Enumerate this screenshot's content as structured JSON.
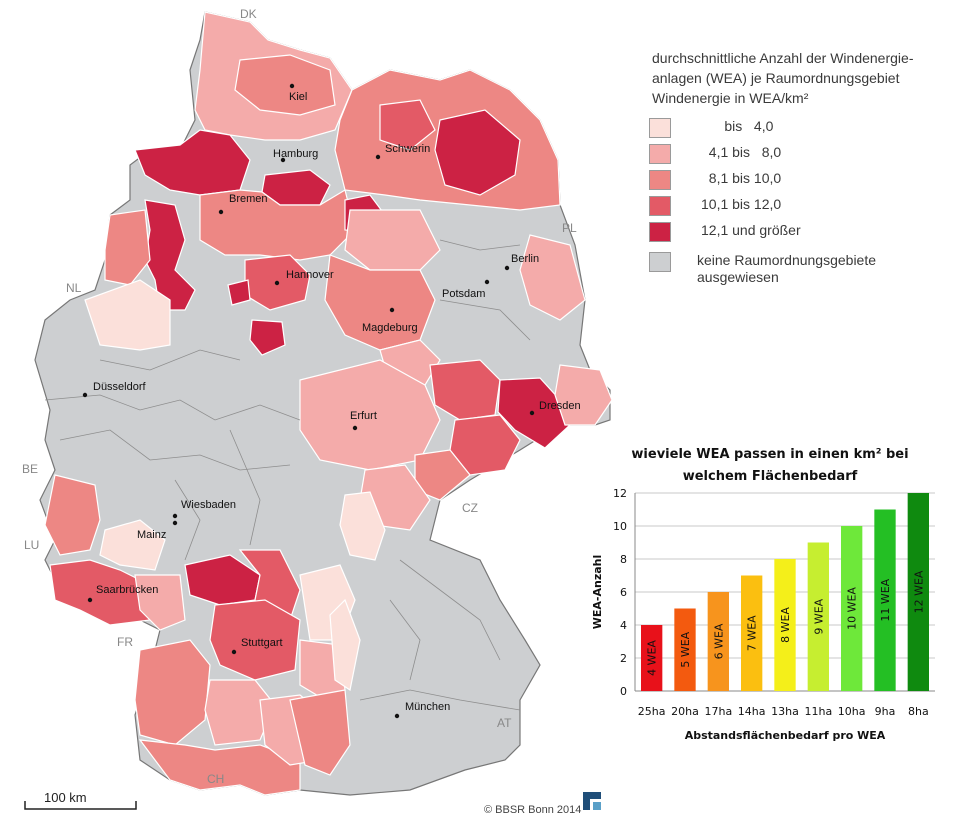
{
  "legend": {
    "title": "durchschnittliche Anzahl der Windenergie-\nanlagen (WEA) je Raumordnungsgebiet\nWindenergie in WEA/km²",
    "items": [
      {
        "label": "      bis   4,0",
        "color": "#fbe0da"
      },
      {
        "label": "  4,1 bis   8,0",
        "color": "#f4abaa"
      },
      {
        "label": "  8,1 bis 10,0",
        "color": "#ed8784"
      },
      {
        "label": "10,1 bis 12,0",
        "color": "#e35a66"
      },
      {
        "label": "12,1 und größer",
        "color": "#cc2244"
      },
      {
        "label": "keine Raumordnungsgebiete\nausgewiesen",
        "color": "#cdcfd1"
      }
    ]
  },
  "cities": [
    {
      "name": "Kiel"
    },
    {
      "name": "Hamburg"
    },
    {
      "name": "Schwerin"
    },
    {
      "name": "Bremen"
    },
    {
      "name": "Berlin"
    },
    {
      "name": "Potsdam"
    },
    {
      "name": "Hannover"
    },
    {
      "name": "Magdeburg"
    },
    {
      "name": "Düsseldorf"
    },
    {
      "name": "Dresden"
    },
    {
      "name": "Erfurt"
    },
    {
      "name": "Wiesbaden"
    },
    {
      "name": "Mainz"
    },
    {
      "name": "Saarbrücken"
    },
    {
      "name": "Stuttgart"
    },
    {
      "name": "München"
    }
  ],
  "countries": [
    "DK",
    "PL",
    "NL",
    "BE",
    "LU",
    "FR",
    "CH",
    "AT",
    "CZ"
  ],
  "scalebar": {
    "label": "100 km"
  },
  "copyright": "© BBSR Bonn 2014",
  "chart": {
    "title": "wieviele WEA passen in einen km² bei welchem Flächenbedarf"
  },
  "chart_data": {
    "type": "bar",
    "title": "wieviele WEA passen in einen km² bei welchem Flächenbedarf",
    "xlabel": "Abstandsflächenbedarf  pro WEA",
    "ylabel": "WEA-Anzahl",
    "categories": [
      "25ha",
      "20ha",
      "17ha",
      "14ha",
      "13ha",
      "11ha",
      "10ha",
      "9ha",
      "8ha"
    ],
    "values": [
      4,
      5,
      6,
      7,
      8,
      9,
      10,
      11,
      12
    ],
    "bar_labels": [
      "4 WEA",
      "5 WEA",
      "6 WEA",
      "7 WEA",
      "8 WEA",
      "9 WEA",
      "10 WEA",
      "11 WEA",
      "12 WEA"
    ],
    "colors": [
      "#e8111a",
      "#f35a0f",
      "#f7941d",
      "#fbbf10",
      "#f4ef1a",
      "#c6ee30",
      "#6ee83a",
      "#24bf24",
      "#0f8a0f"
    ],
    "ylim": [
      0,
      12
    ],
    "yticks": [
      0,
      2,
      4,
      6,
      8,
      10,
      12
    ],
    "grid": true
  }
}
